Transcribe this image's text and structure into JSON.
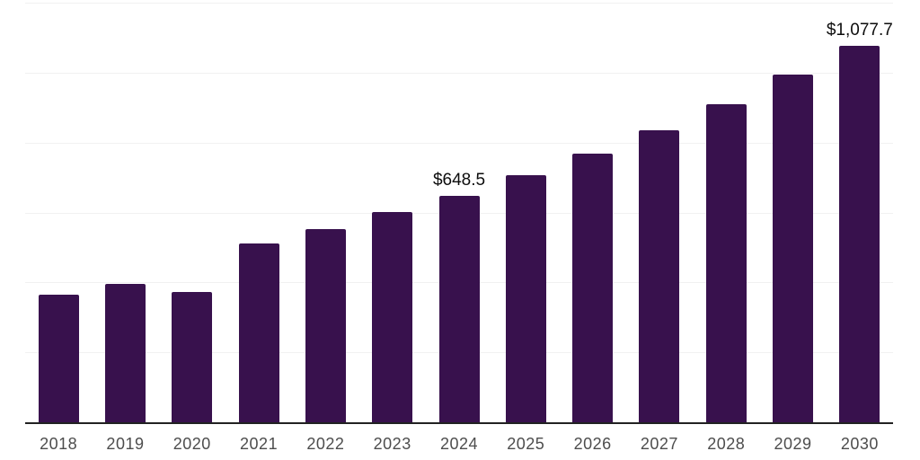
{
  "chart_data": {
    "type": "bar",
    "title": "",
    "xlabel": "",
    "ylabel": "",
    "categories": [
      "2018",
      "2019",
      "2020",
      "2021",
      "2022",
      "2023",
      "2024",
      "2025",
      "2026",
      "2027",
      "2028",
      "2029",
      "2030"
    ],
    "values": [
      365,
      396,
      373,
      511,
      552,
      601,
      648.5,
      707,
      768,
      835,
      910,
      994,
      1077.7
    ],
    "data_labels": {
      "2024": "$648.5",
      "2030": "$1,077.7"
    },
    "ylim": [
      0,
      1200
    ],
    "gridline_step": 200,
    "grid": "horizontal-light",
    "legend": "none",
    "colors": {
      "bar": "#38114d",
      "gridline": "#f1f1f1",
      "axis": "#222222",
      "tick_label": "#4d4d4d",
      "data_label": "#0d0d0d",
      "background": "#ffffff"
    }
  }
}
